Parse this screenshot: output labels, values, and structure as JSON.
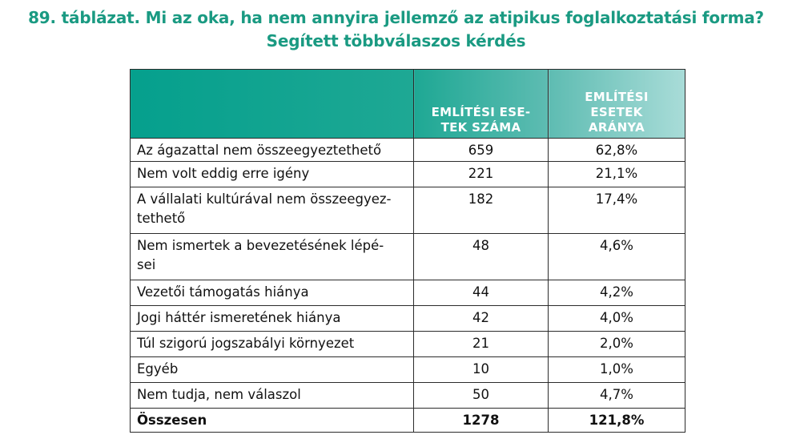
{
  "title": {
    "line1": "89. táblázat. Mi az oka, ha nem annyira jellemző az atipikus foglalkoztatási forma?",
    "line2": "Segített többválaszos kérdés"
  },
  "table": {
    "headers": [
      "",
      "EMLÍTÉSI ESE-\nTEK SZÁMA",
      "EMLÍTÉSI\nESETEK\nARÁNYA"
    ],
    "rows": [
      {
        "label": "Az ágazattal nem összeegyeztethető",
        "count": "659",
        "ratio": "62,8%"
      },
      {
        "label": "Nem volt eddig erre igény",
        "count": "221",
        "ratio": "21,1%"
      },
      {
        "label": "A vállalati kultúrával nem összeegyez-\ntethető",
        "count": "182",
        "ratio": "17,4%"
      },
      {
        "label": "Nem ismertek a bevezetésének lépé-\nsei",
        "count": "48",
        "ratio": "4,6%"
      },
      {
        "label": "Vezetői támogatás hiánya",
        "count": "44",
        "ratio": "4,2%"
      },
      {
        "label": "Jogi háttér ismeretének hiánya",
        "count": "42",
        "ratio": "4,0%"
      },
      {
        "label": "Túl szigorú jogszabályi környezet",
        "count": "21",
        "ratio": "2,0%"
      },
      {
        "label": "Egyéb",
        "count": "10",
        "ratio": "1,0%"
      },
      {
        "label": "Nem tudja, nem válaszol",
        "count": "50",
        "ratio": "4,7%"
      }
    ],
    "total": {
      "label": "Összesen",
      "count": "1278",
      "ratio": "121,8%"
    }
  },
  "colors": {
    "title": "#1a9a82",
    "header_start": "#05a08d",
    "header_end": "#a9dcd8",
    "header_text": "#ffffff",
    "border": "#2b2b2b"
  }
}
